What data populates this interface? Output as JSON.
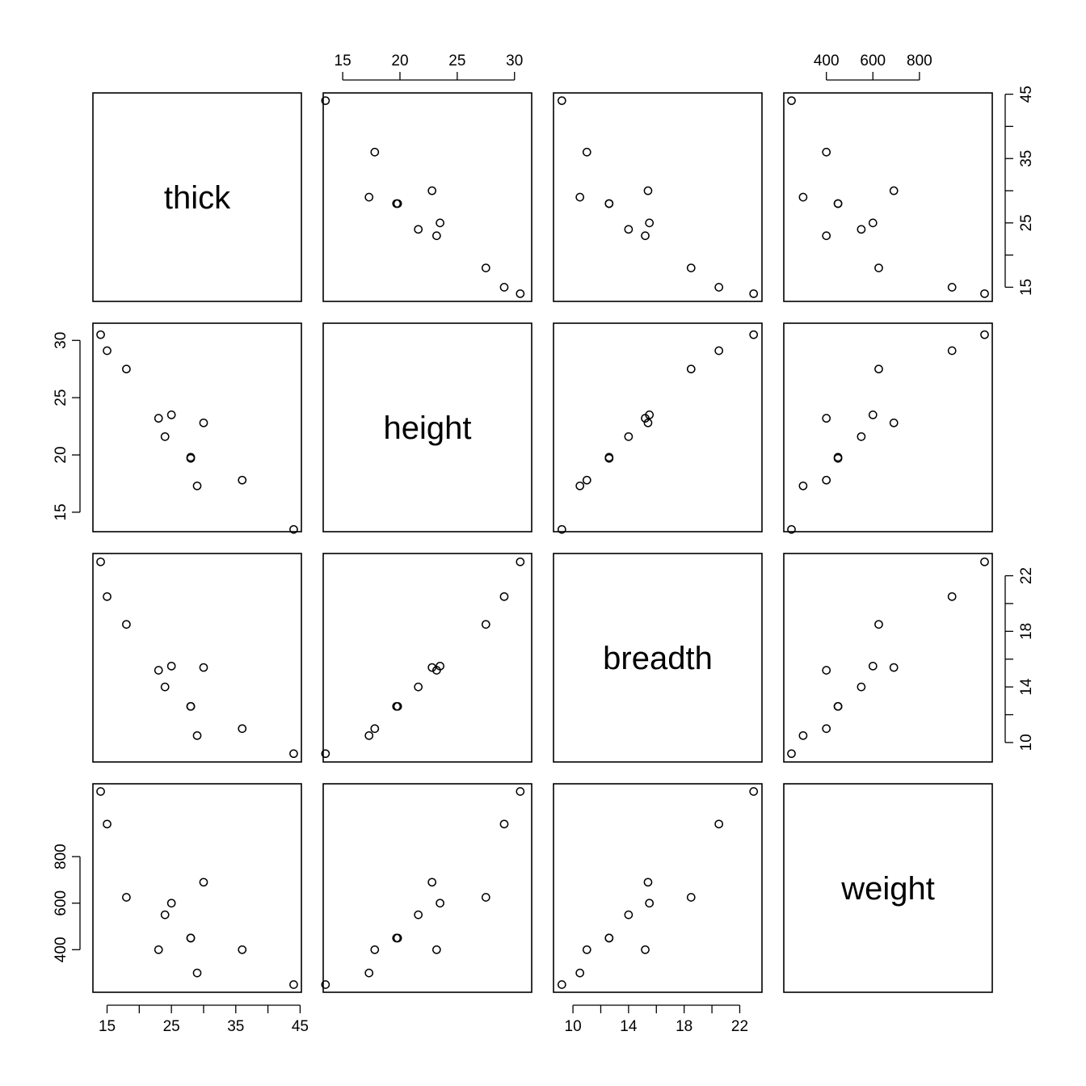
{
  "chart_data": {
    "type": "scatter",
    "variables": [
      "thick",
      "height",
      "breadth",
      "weight"
    ],
    "observations": [
      {
        "thick": 44,
        "height": 13.5,
        "breadth": 9.2,
        "weight": 250
      },
      {
        "thick": 36,
        "height": 17.8,
        "breadth": 11.0,
        "weight": 400
      },
      {
        "thick": 29,
        "height": 17.3,
        "breadth": 10.5,
        "weight": 300
      },
      {
        "thick": 28,
        "height": 19.8,
        "breadth": 12.6,
        "weight": 450
      },
      {
        "thick": 28,
        "height": 19.7,
        "breadth": 12.6,
        "weight": 450
      },
      {
        "thick": 30,
        "height": 22.8,
        "breadth": 15.4,
        "weight": 690
      },
      {
        "thick": 24,
        "height": 21.6,
        "breadth": 14.0,
        "weight": 550
      },
      {
        "thick": 25,
        "height": 23.5,
        "breadth": 15.5,
        "weight": 600
      },
      {
        "thick": 23,
        "height": 23.2,
        "breadth": 15.2,
        "weight": 400
      },
      {
        "thick": 18,
        "height": 27.5,
        "breadth": 18.5,
        "weight": 625
      },
      {
        "thick": 15,
        "height": 29.1,
        "breadth": 20.5,
        "weight": 940
      },
      {
        "thick": 14,
        "height": 30.5,
        "breadth": 23.0,
        "weight": 1080
      }
    ],
    "axis_ranges": {
      "thick": [
        12.8,
        45.2
      ],
      "height": [
        13.3,
        31.5
      ],
      "breadth": [
        8.6,
        23.6
      ],
      "weight": [
        217,
        1113
      ]
    },
    "ticks": {
      "thick": [
        15,
        20,
        25,
        30,
        35,
        40,
        45
      ],
      "height": [
        15,
        20,
        25,
        30
      ],
      "breadth": [
        10,
        12,
        14,
        16,
        18,
        20,
        22
      ],
      "weight": [
        400,
        600,
        800
      ]
    },
    "tick_labels": {
      "thick": [
        "15",
        "25",
        "35",
        "45"
      ],
      "height": [
        "15",
        "20",
        "25",
        "30"
      ],
      "breadth": [
        "10",
        "14",
        "18",
        "22"
      ],
      "weight": [
        "400",
        "600",
        "800"
      ]
    },
    "grid": false,
    "legend": "none"
  }
}
